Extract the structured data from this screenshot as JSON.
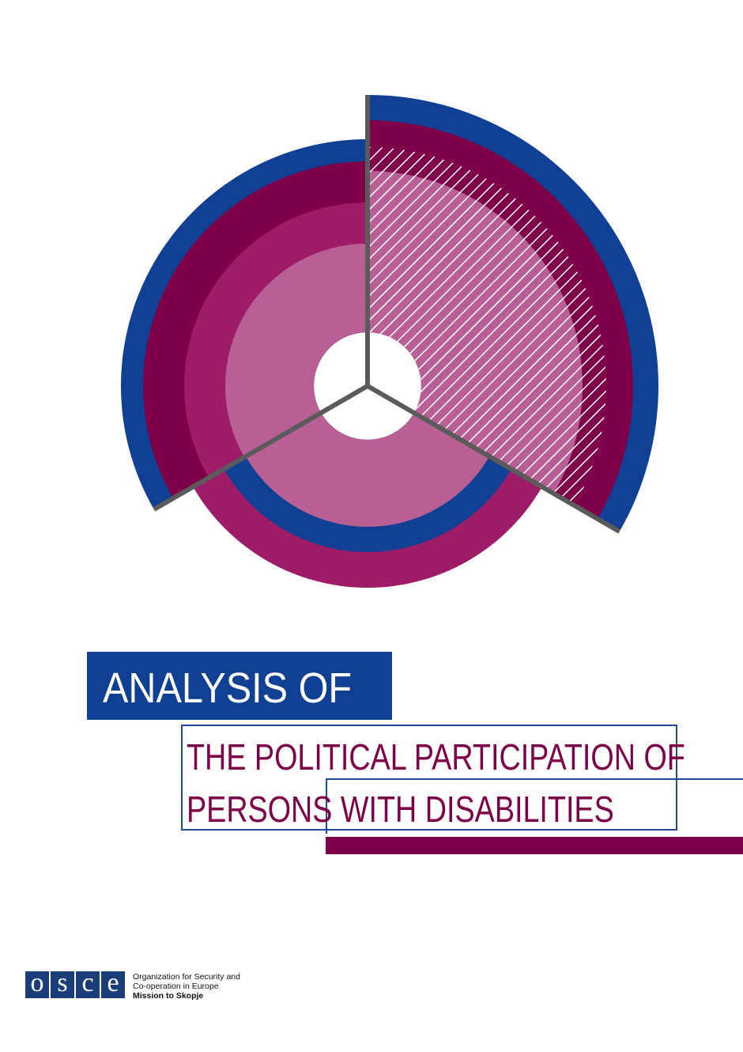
{
  "colors": {
    "blue": "#0f4093",
    "plum": "#7d0049",
    "magenta": "#9e1b68",
    "pink": "#b85f96",
    "divider": "#5b5b5b"
  },
  "title": {
    "line": "ANALYSIS OF"
  },
  "subtitle": {
    "line1": "THE POLITICAL PARTICIPATION OF",
    "line2": "PERSONS WITH DISABILITIES"
  },
  "footer": {
    "logo_letters": [
      "o",
      "s",
      "c",
      "e"
    ],
    "org_line1": "Organization for Security and",
    "org_line2": "Co-operation in Europe",
    "mission": "Mission to Skopje"
  }
}
